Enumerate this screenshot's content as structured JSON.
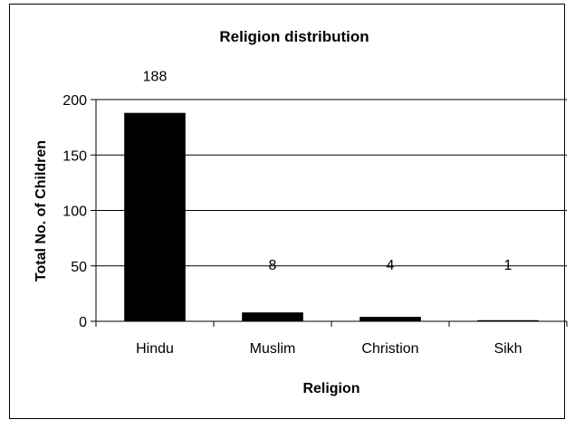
{
  "chart_data": {
    "type": "bar",
    "title": "Religion distribution",
    "xlabel": "Religion",
    "ylabel": "Total No. of Children",
    "categories": [
      "Hindu",
      "Muslim",
      "Christion",
      "Sikh"
    ],
    "values": [
      188,
      8,
      4,
      1
    ],
    "data_labels": [
      "188",
      "8",
      "4",
      "1"
    ],
    "yticks": [
      0,
      50,
      100,
      150,
      200
    ],
    "ylim": [
      0,
      200
    ],
    "grid": true,
    "legend": "none",
    "bar_color": "#000000"
  }
}
